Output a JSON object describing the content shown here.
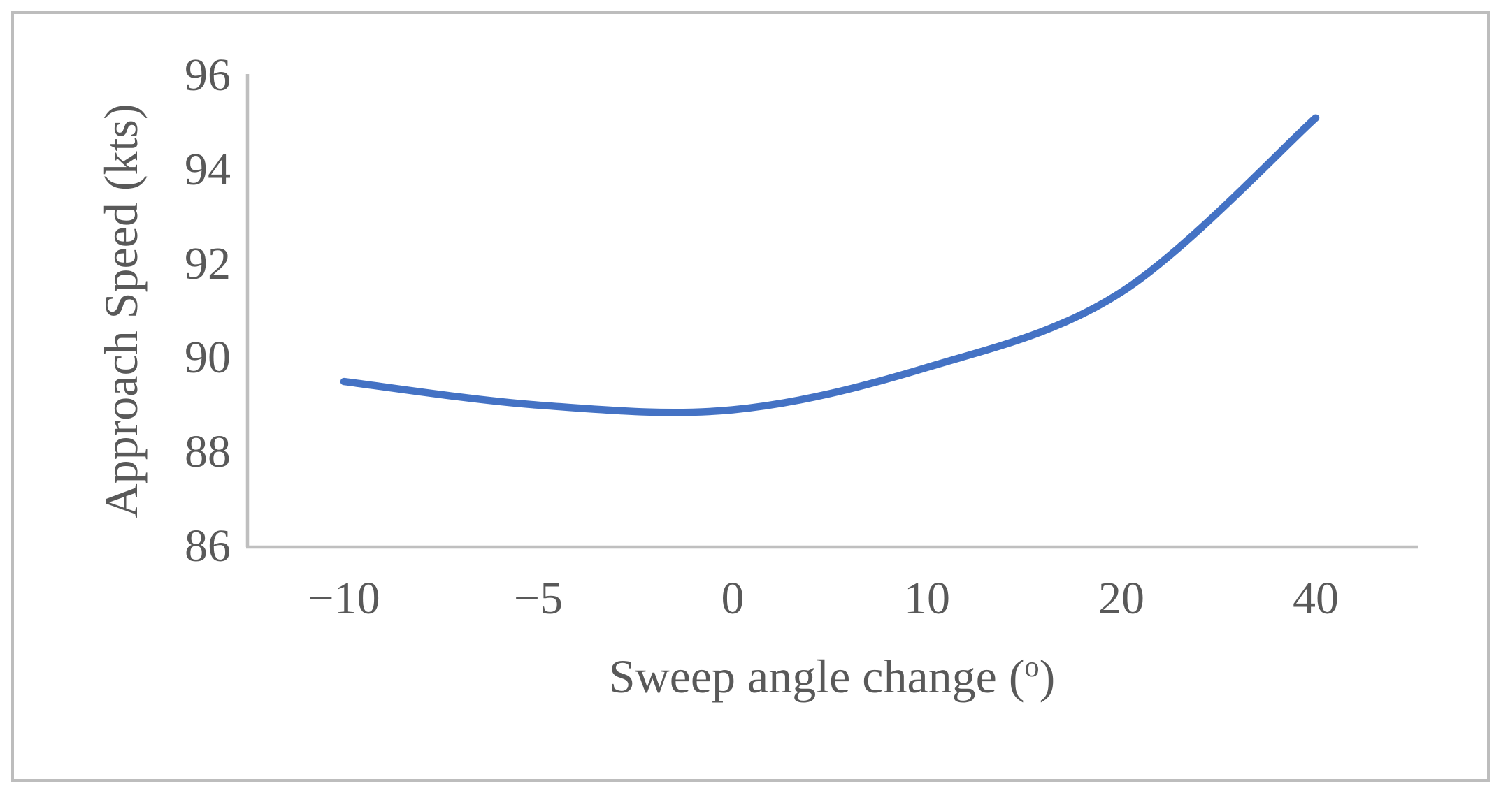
{
  "figure": {
    "background_color": "#ffffff",
    "border_color": "#bdbdbd"
  },
  "chart_data": {
    "type": "line",
    "categories": [
      "−10",
      "−5",
      "0",
      "10",
      "20",
      "40"
    ],
    "category_values": [
      -10,
      -5,
      0,
      10,
      20,
      40
    ],
    "series": [
      {
        "values": [
          89.5,
          89.0,
          88.9,
          89.8,
          91.4,
          95.1
        ],
        "color": "#4472C4",
        "smooth": true,
        "stroke_width": 10.5
      }
    ],
    "title": "",
    "xlabel": "Sweep angle change (°)",
    "xlabel_parts": {
      "prefix": "Sweep angle change (",
      "sup": "o",
      "suffix": ")"
    },
    "ylabel": "Approach Speed (kts)",
    "ylim": [
      86,
      96
    ],
    "yticks": [
      96,
      94,
      92,
      90,
      88,
      86
    ],
    "grid": false,
    "legend": "none",
    "axis_color": "#bfbfbf",
    "tick_label_color": "#595959"
  }
}
